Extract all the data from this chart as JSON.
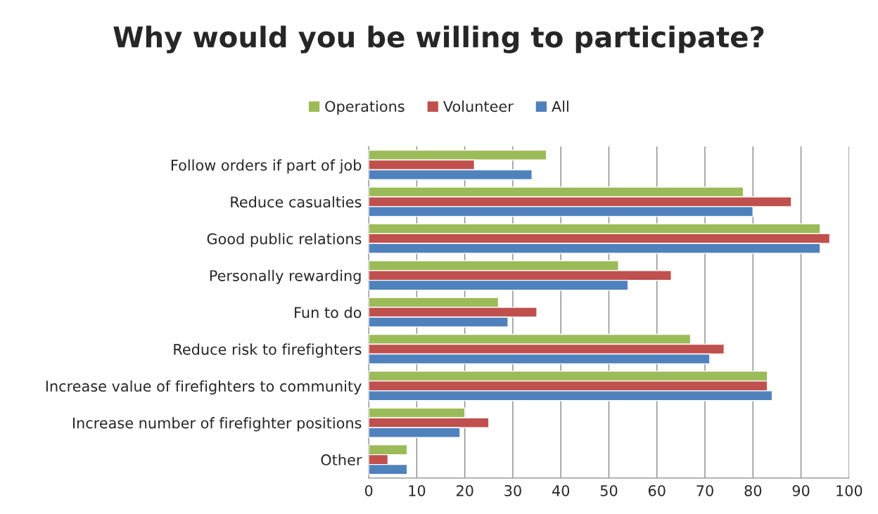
{
  "chart_data": {
    "type": "bar",
    "orientation": "horizontal",
    "title": "Why would you be willing to participate?",
    "categories": [
      "Follow orders if part of job",
      "Reduce casualties",
      "Good public relations",
      "Personally rewarding",
      "Fun to do",
      "Reduce risk to firefighters",
      "Increase value of firefighters to community",
      "Increase number of firefighter positions",
      "Other"
    ],
    "series": [
      {
        "name": "Operations",
        "color": "#9bbb59",
        "values": [
          37,
          78,
          94,
          52,
          27,
          67,
          83,
          20,
          8
        ]
      },
      {
        "name": "Volunteer",
        "color": "#c0504d",
        "values": [
          22,
          88,
          96,
          63,
          35,
          74,
          83,
          25,
          4
        ]
      },
      {
        "name": "All",
        "color": "#4f81bd",
        "values": [
          34,
          80,
          94,
          54,
          29,
          71,
          84,
          19,
          8
        ]
      }
    ],
    "xlim": [
      0,
      100
    ],
    "xticks": [
      0,
      10,
      20,
      30,
      40,
      50,
      60,
      70,
      80,
      90,
      100
    ],
    "grid": "x",
    "legend": "top"
  }
}
